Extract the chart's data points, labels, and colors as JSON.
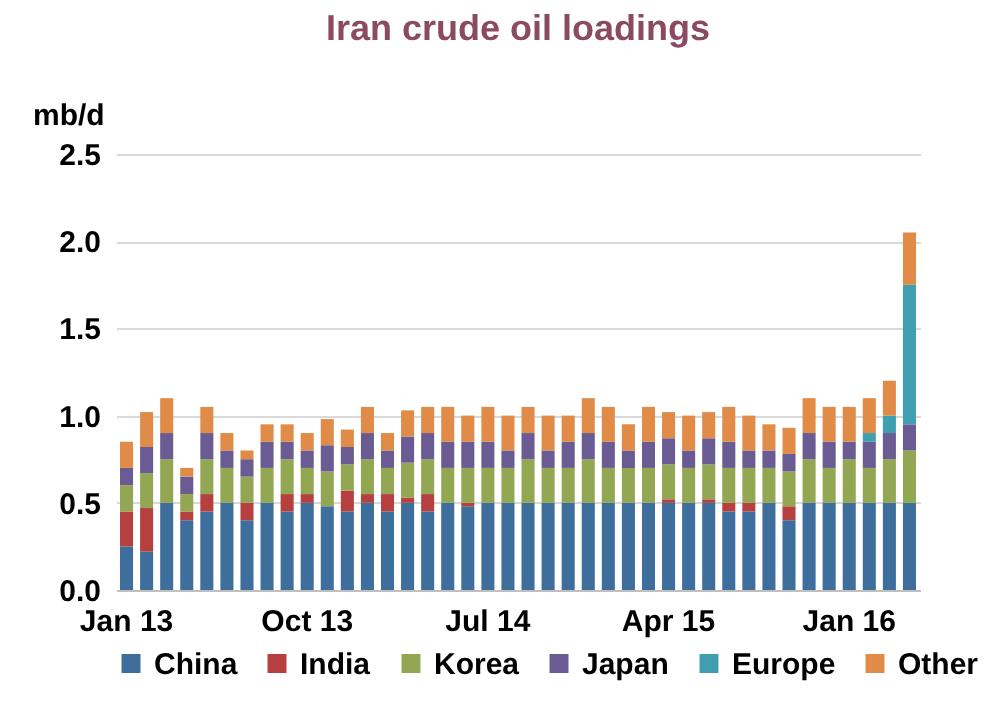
{
  "chart_data": {
    "type": "bar",
    "title": "Iran crude oil loadings",
    "ylabel": "mb/d",
    "stacked": true,
    "categories": [
      "Jan 13",
      null,
      null,
      null,
      null,
      null,
      null,
      null,
      null,
      "Oct 13",
      null,
      null,
      null,
      null,
      null,
      null,
      null,
      null,
      "Jul 14",
      null,
      null,
      null,
      null,
      null,
      null,
      null,
      null,
      "Apr 15",
      null,
      null,
      null,
      null,
      null,
      null,
      null,
      null,
      "Jan 16",
      null,
      null,
      null
    ],
    "series": [
      {
        "name": "China",
        "color": "#3e6e9c",
        "values": [
          0.25,
          0.22,
          0.5,
          0.4,
          0.45,
          0.5,
          0.4,
          0.5,
          0.45,
          0.5,
          0.48,
          0.45,
          0.5,
          0.45,
          0.5,
          0.45,
          0.5,
          0.48,
          0.5,
          0.5,
          0.5,
          0.5,
          0.5,
          0.5,
          0.5,
          0.5,
          0.5,
          0.5,
          0.5,
          0.5,
          0.45,
          0.45,
          0.5,
          0.4,
          0.5,
          0.5,
          0.5,
          0.5,
          0.5,
          0.5
        ]
      },
      {
        "name": "India",
        "color": "#b5403f",
        "values": [
          0.2,
          0.25,
          0,
          0.05,
          0.1,
          0,
          0.1,
          0,
          0.1,
          0.05,
          0,
          0.12,
          0.05,
          0.1,
          0.03,
          0.1,
          0,
          0.02,
          0,
          0,
          0,
          0,
          0,
          0,
          0,
          0,
          0,
          0.02,
          0,
          0.02,
          0.05,
          0.05,
          0,
          0.08,
          0,
          0,
          0,
          0,
          0,
          0
        ]
      },
      {
        "name": "Korea",
        "color": "#93a752",
        "values": [
          0.15,
          0.2,
          0.25,
          0.1,
          0.2,
          0.2,
          0.15,
          0.2,
          0.2,
          0.15,
          0.2,
          0.15,
          0.2,
          0.15,
          0.2,
          0.2,
          0.2,
          0.2,
          0.2,
          0.2,
          0.25,
          0.2,
          0.2,
          0.25,
          0.2,
          0.2,
          0.2,
          0.2,
          0.2,
          0.2,
          0.2,
          0.2,
          0.2,
          0.2,
          0.25,
          0.2,
          0.25,
          0.2,
          0.25,
          0.3
        ]
      },
      {
        "name": "Japan",
        "color": "#6b5b93",
        "values": [
          0.1,
          0.15,
          0.15,
          0.1,
          0.15,
          0.1,
          0.1,
          0.15,
          0.1,
          0.1,
          0.15,
          0.1,
          0.15,
          0.1,
          0.15,
          0.15,
          0.15,
          0.15,
          0.15,
          0.1,
          0.15,
          0.1,
          0.15,
          0.15,
          0.15,
          0.1,
          0.15,
          0.15,
          0.1,
          0.15,
          0.15,
          0.1,
          0.1,
          0.1,
          0.15,
          0.15,
          0.1,
          0.15,
          0.15,
          0.15
        ]
      },
      {
        "name": "Europe",
        "color": "#3f9fb0",
        "values": [
          0,
          0,
          0,
          0,
          0,
          0,
          0,
          0,
          0,
          0,
          0,
          0,
          0,
          0,
          0,
          0,
          0,
          0,
          0,
          0,
          0,
          0,
          0,
          0,
          0,
          0,
          0,
          0,
          0,
          0,
          0,
          0,
          0,
          0,
          0,
          0,
          0,
          0.05,
          0.1,
          0.8
        ]
      },
      {
        "name": "Other",
        "color": "#e08b48",
        "values": [
          0.15,
          0.2,
          0.2,
          0.05,
          0.15,
          0.1,
          0.05,
          0.1,
          0.1,
          0.1,
          0.15,
          0.1,
          0.15,
          0.1,
          0.15,
          0.15,
          0.2,
          0.15,
          0.2,
          0.2,
          0.15,
          0.2,
          0.15,
          0.2,
          0.2,
          0.15,
          0.2,
          0.15,
          0.2,
          0.15,
          0.2,
          0.2,
          0.15,
          0.15,
          0.2,
          0.2,
          0.2,
          0.2,
          0.2,
          0.3
        ]
      }
    ],
    "ylim": [
      0,
      2.5
    ],
    "yticks": [
      {
        "value": 0,
        "label": "0.0"
      },
      {
        "value": 0.5,
        "label": "0.5"
      },
      {
        "value": 1,
        "label": "1.0"
      },
      {
        "value": 1.5,
        "label": "1.5"
      },
      {
        "value": 2,
        "label": "2.0"
      },
      {
        "value": 2.5,
        "label": "2.5"
      }
    ],
    "grid": "y",
    "legend": "bottom"
  }
}
